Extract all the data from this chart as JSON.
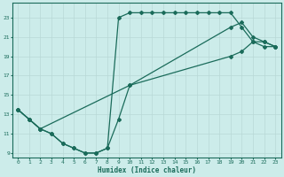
{
  "xlabel": "Humidex (Indice chaleur)",
  "bg_color": "#ccecea",
  "line_color": "#1a6b5a",
  "xlim": [
    -0.5,
    23.5
  ],
  "ylim": [
    8.5,
    24.5
  ],
  "yticks": [
    9,
    11,
    13,
    15,
    17,
    19,
    21,
    23
  ],
  "xticks": [
    0,
    1,
    2,
    3,
    4,
    5,
    6,
    7,
    8,
    9,
    10,
    11,
    12,
    13,
    14,
    15,
    16,
    17,
    18,
    19,
    20,
    21,
    22,
    23
  ],
  "line1_x": [
    0,
    1,
    2,
    3,
    4,
    5,
    6,
    7,
    8,
    9,
    10,
    11,
    12,
    13,
    14,
    15,
    16,
    17,
    18,
    19,
    20,
    21,
    22,
    23
  ],
  "line1_y": [
    13.5,
    12.5,
    11.5,
    11.0,
    10.0,
    9.5,
    9.0,
    9.0,
    9.5,
    23.0,
    23.5,
    23.5,
    23.5,
    23.5,
    23.5,
    23.5,
    23.5,
    23.5,
    23.5,
    23.5,
    22.0,
    20.5,
    20.5,
    20.0
  ],
  "line2_x": [
    0,
    1,
    2,
    3,
    4,
    5,
    6,
    7,
    8,
    9,
    10,
    19,
    20,
    21,
    22,
    23
  ],
  "line2_y": [
    13.5,
    12.5,
    11.5,
    11.0,
    10.0,
    9.5,
    9.0,
    9.0,
    9.5,
    12.5,
    16.0,
    22.0,
    22.5,
    21.0,
    20.5,
    20.0
  ],
  "line3_x": [
    0,
    1,
    2,
    10,
    19,
    20,
    21,
    22,
    23
  ],
  "line3_y": [
    13.5,
    12.5,
    11.5,
    16.0,
    19.0,
    19.5,
    20.5,
    20.0,
    20.0
  ]
}
